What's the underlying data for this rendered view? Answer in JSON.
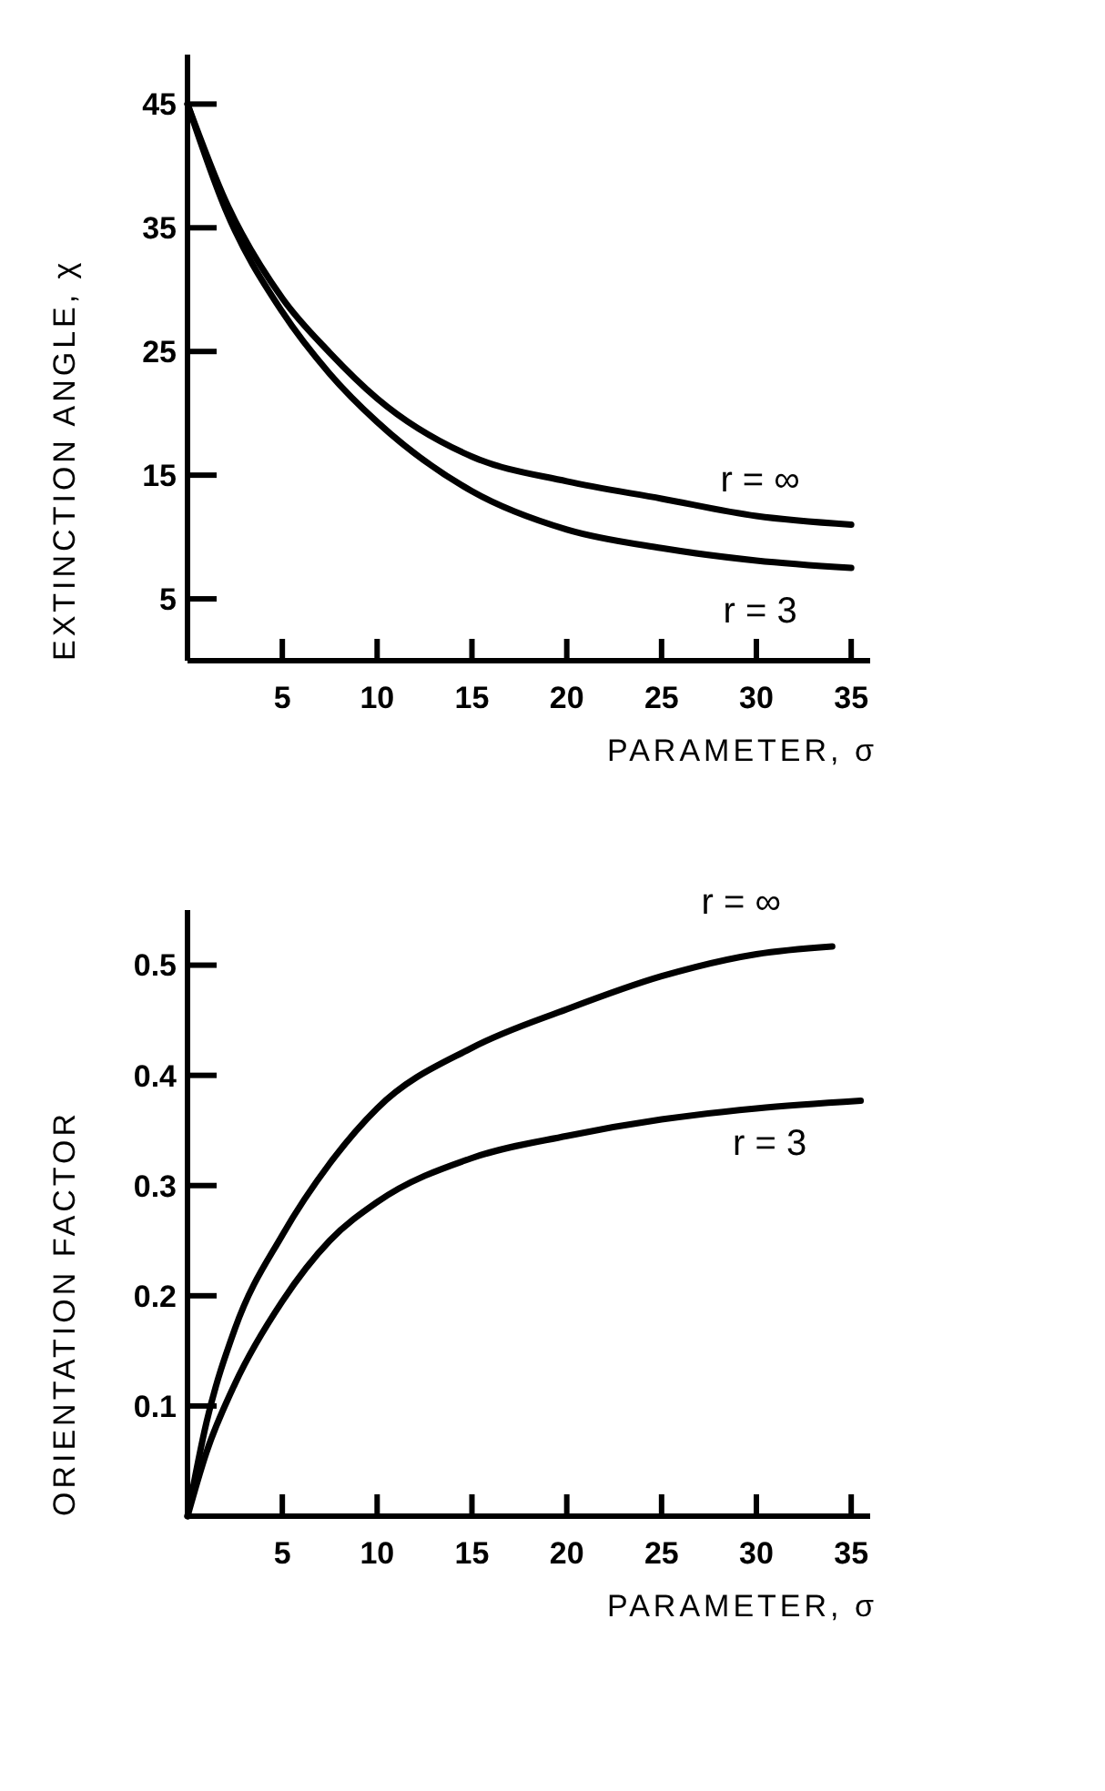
{
  "chart_data": [
    {
      "type": "line",
      "xlabel": "PARAMETER, σ",
      "ylabel": "EXTINCTION ANGLE, χ",
      "xlim": [
        0,
        36
      ],
      "ylim": [
        0,
        49
      ],
      "xticks": [
        5,
        10,
        15,
        20,
        25,
        30,
        35
      ],
      "yticks": [
        5,
        15,
        25,
        35,
        45
      ],
      "grid": false,
      "marker": "none",
      "line_style": "solid",
      "series": [
        {
          "name": "r = ∞",
          "color": "#000000",
          "x": [
            0,
            2,
            5,
            7.5,
            10,
            15,
            20,
            25,
            30,
            35
          ],
          "values": [
            45,
            37.2,
            29.3,
            24.9,
            21.2,
            16.5,
            14.5,
            13.1,
            11.7,
            11.0
          ]
        },
        {
          "name": "r = 3",
          "color": "#000000",
          "x": [
            0,
            2,
            5,
            7.5,
            10,
            15,
            20,
            25,
            30,
            35
          ],
          "values": [
            45,
            36.5,
            28.2,
            23.2,
            19.3,
            13.7,
            10.6,
            9.1,
            8.1,
            7.5
          ]
        }
      ]
    },
    {
      "type": "line",
      "xlabel": "PARAMETER, σ",
      "ylabel": "ORIENTATION FACTOR",
      "xlim": [
        0,
        36
      ],
      "ylim": [
        0,
        0.55
      ],
      "xticks": [
        5,
        10,
        15,
        20,
        25,
        30,
        35
      ],
      "yticks": [
        0.1,
        0.2,
        0.3,
        0.4,
        0.5
      ],
      "grid": false,
      "marker": "none",
      "line_style": "solid",
      "series": [
        {
          "name": "r = ∞",
          "color": "#000000",
          "x": [
            0,
            1,
            2.5,
            5,
            7.5,
            10,
            15,
            20,
            25,
            30,
            34
          ],
          "values": [
            0,
            0.085,
            0.17,
            0.255,
            0.32,
            0.37,
            0.425,
            0.46,
            0.49,
            0.51,
            0.517
          ]
        },
        {
          "name": "r = 3",
          "color": "#000000",
          "x": [
            0,
            1,
            2.5,
            5,
            7.5,
            10,
            15,
            20,
            25,
            30,
            35.5
          ],
          "values": [
            0,
            0.058,
            0.12,
            0.195,
            0.25,
            0.285,
            0.325,
            0.345,
            0.36,
            0.37,
            0.377
          ]
        }
      ]
    }
  ]
}
